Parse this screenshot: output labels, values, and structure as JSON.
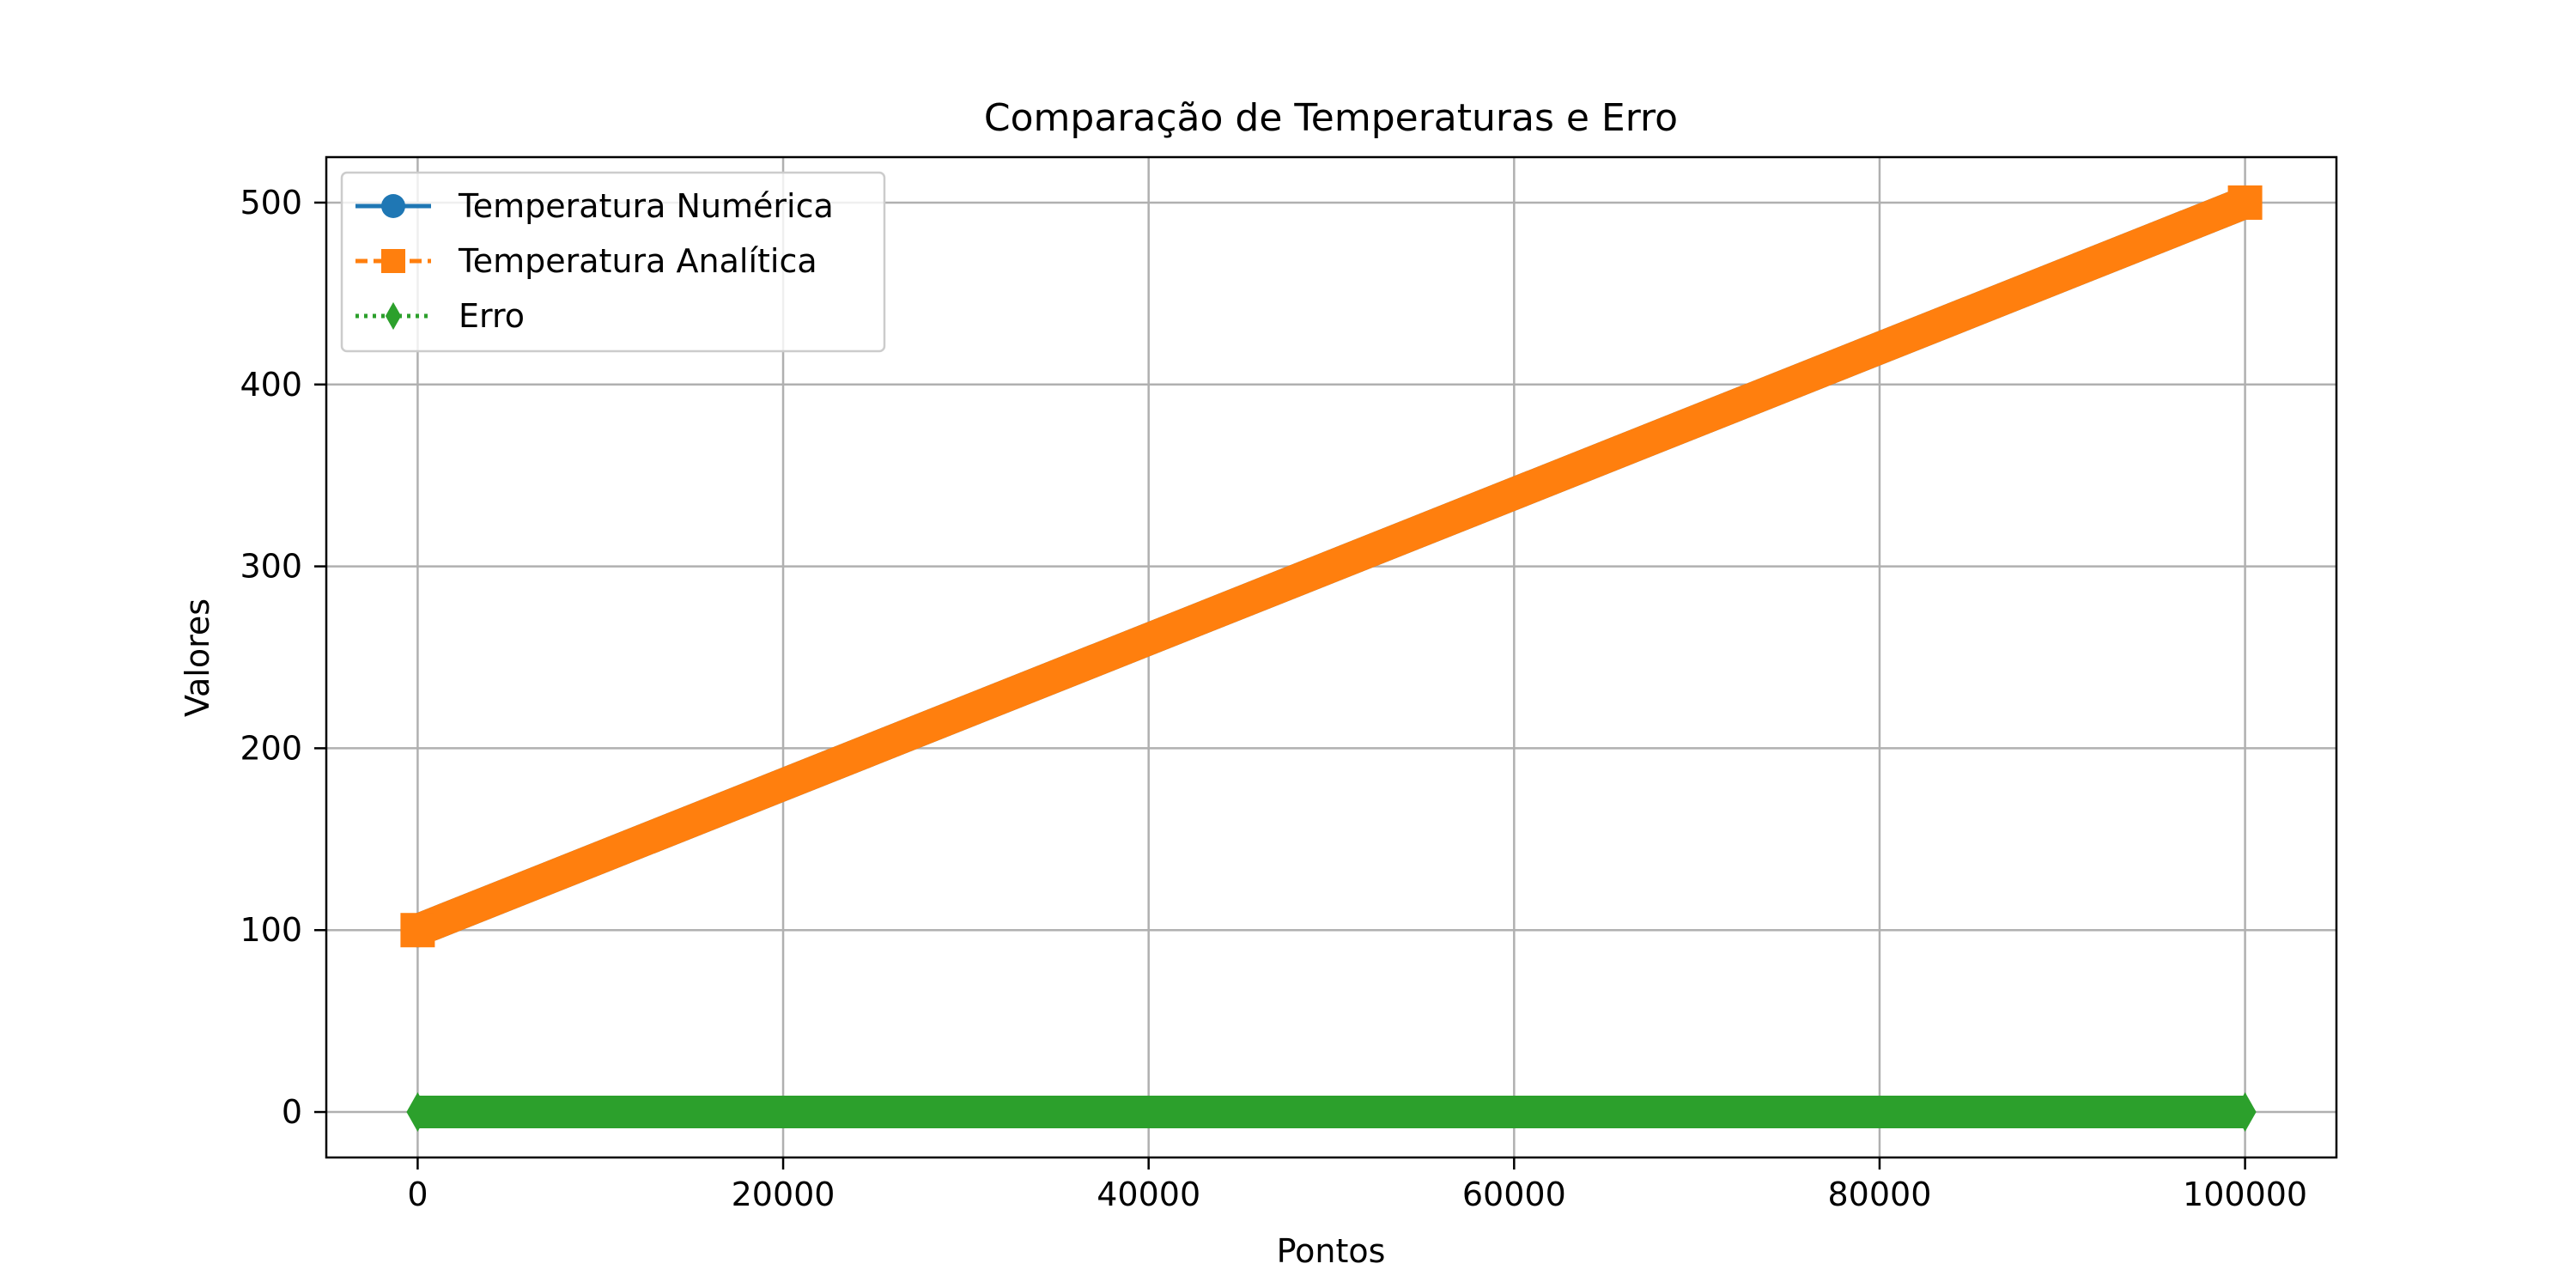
{
  "chart_data": {
    "type": "line",
    "title": "Comparação de Temperaturas e Erro",
    "xlabel": "Pontos",
    "ylabel": "Valores",
    "xlim": [
      -5000,
      105000
    ],
    "ylim": [
      -25,
      525
    ],
    "x_ticks": [
      0,
      20000,
      40000,
      60000,
      80000,
      100000
    ],
    "x_tick_labels": [
      "0",
      "20000",
      "40000",
      "60000",
      "80000",
      "100000"
    ],
    "y_ticks": [
      0,
      100,
      200,
      300,
      400,
      500
    ],
    "y_tick_labels": [
      "0",
      "100",
      "200",
      "300",
      "400",
      "500"
    ],
    "grid": true,
    "legend_position": "upper-left",
    "series": [
      {
        "name": "Temperatura Numérica",
        "color": "#1f77b4",
        "marker": "circle",
        "line_style": "solid",
        "x": [
          0,
          100000
        ],
        "y": [
          100,
          500
        ]
      },
      {
        "name": "Temperatura Analítica",
        "color": "#ff7f0e",
        "marker": "square",
        "line_style": "dashed",
        "x": [
          0,
          100000
        ],
        "y": [
          100,
          500
        ]
      },
      {
        "name": "Erro",
        "color": "#2ca02c",
        "marker": "diamond",
        "line_style": "dotted",
        "x": [
          0,
          100000
        ],
        "y": [
          0,
          0
        ]
      }
    ]
  }
}
